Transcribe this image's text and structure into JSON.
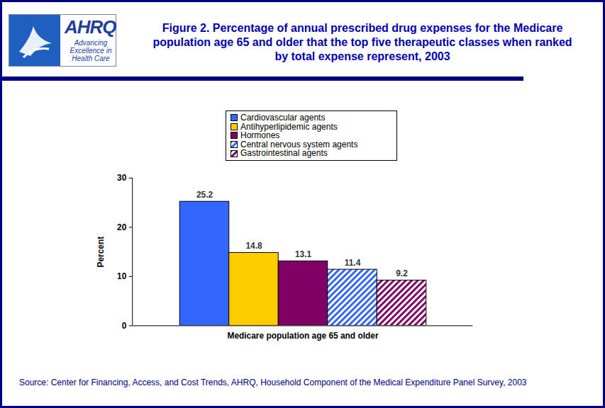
{
  "chart_data": {
    "type": "bar",
    "title": "Figure 2. Percentage of annual prescribed drug expenses for the Medicare population age 65 and older that the top five therapeutic classes when ranked by total expense represent, 2003",
    "categories": [
      "Medicare population age 65 and older"
    ],
    "series": [
      {
        "name": "Cardiovascular agents",
        "color": "#3366ff",
        "values": [
          25.2
        ]
      },
      {
        "name": "Antihyperlipidemic agents",
        "color": "#ffcc00",
        "values": [
          14.8
        ]
      },
      {
        "name": "Hormones",
        "color": "#800066",
        "values": [
          13.1
        ]
      },
      {
        "name": "Central nervous system agents",
        "color": "#3366ff",
        "values": [
          11.4
        ]
      },
      {
        "name": "Gastrointestinal agents",
        "color": "#800066",
        "values": [
          9.2
        ]
      }
    ],
    "y_label": "Percent",
    "ylim": [
      0,
      30
    ],
    "yticks": [
      0,
      10,
      20,
      30
    ],
    "grid": false,
    "data_labels": true,
    "legend": "top",
    "source": "Source: Center for Financing, Access, and Cost Trends, AHRQ, Household Component of the Medical Expenditure Panel Survey, 2003"
  },
  "logo": {
    "name": "AHRQ",
    "tagline": "Advancing Excellence in Health Care"
  }
}
